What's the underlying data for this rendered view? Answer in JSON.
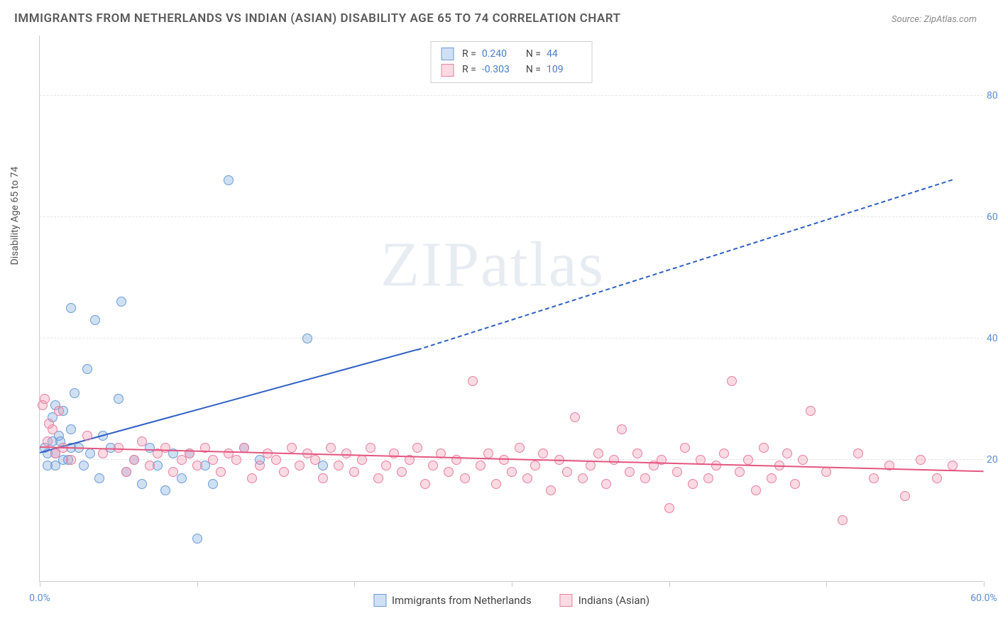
{
  "title": "IMMIGRANTS FROM NETHERLANDS VS INDIAN (ASIAN) DISABILITY AGE 65 TO 74 CORRELATION CHART",
  "source_label": "Source:",
  "source_value": "ZipAtlas.com",
  "y_axis_title": "Disability Age 65 to 74",
  "watermark": "ZIPatlas",
  "chart": {
    "type": "scatter",
    "xlim": [
      0,
      60
    ],
    "ylim": [
      0,
      90
    ],
    "y_ticks": [
      20,
      40,
      60,
      80
    ],
    "y_tick_labels": [
      "20.0%",
      "40.0%",
      "60.0%",
      "80.0%"
    ],
    "x_ticks": [
      0,
      10,
      20,
      30,
      40,
      50,
      60
    ],
    "x_tick_labels_shown": {
      "0": "0.0%",
      "60": "60.0%"
    },
    "grid_color": "#e4e4e4",
    "background": "#ffffff",
    "series": [
      {
        "name": "Immigrants from Netherlands",
        "marker_fill": "rgba(120,165,220,0.35)",
        "marker_stroke": "#6a9bd8",
        "marker_size": 14,
        "trend_color": "#2f5fc2",
        "trend_solid": {
          "x1": 0,
          "y1": 21,
          "x2": 24,
          "y2": 38
        },
        "trend_dashed": {
          "x1": 24,
          "y1": 38,
          "x2": 58,
          "y2": 66
        },
        "R": "0.240",
        "N": "44",
        "points": [
          [
            0.3,
            22
          ],
          [
            0.5,
            21
          ],
          [
            0.8,
            27
          ],
          [
            1,
            29
          ],
          [
            1.2,
            24
          ],
          [
            1,
            19
          ],
          [
            1.3,
            23
          ],
          [
            1.5,
            28
          ],
          [
            1.8,
            20
          ],
          [
            2,
            25
          ],
          [
            2.2,
            31
          ],
          [
            2.5,
            22
          ],
          [
            2,
            45
          ],
          [
            2.8,
            19
          ],
          [
            3,
            35
          ],
          [
            3.2,
            21
          ],
          [
            3.5,
            43
          ],
          [
            3.8,
            17
          ],
          [
            4,
            24
          ],
          [
            4.5,
            22
          ],
          [
            5,
            30
          ],
          [
            5.2,
            46
          ],
          [
            5.5,
            18
          ],
          [
            6,
            20
          ],
          [
            6.5,
            16
          ],
          [
            7,
            22
          ],
          [
            7.5,
            19
          ],
          [
            8,
            15
          ],
          [
            8.5,
            21
          ],
          [
            9,
            17
          ],
          [
            9.5,
            21
          ],
          [
            10,
            7
          ],
          [
            10.5,
            19
          ],
          [
            11,
            16
          ],
          [
            12,
            66
          ],
          [
            13,
            22
          ],
          [
            14,
            20
          ],
          [
            17,
            40
          ],
          [
            18,
            19
          ],
          [
            1,
            21
          ],
          [
            1.5,
            20
          ],
          [
            2,
            22
          ],
          [
            0.8,
            23
          ],
          [
            0.5,
            19
          ]
        ]
      },
      {
        "name": "Indians (Asian)",
        "marker_fill": "rgba(240,150,175,0.35)",
        "marker_stroke": "#e87fa0",
        "marker_size": 14,
        "trend_color": "#e4557f",
        "trend_solid": {
          "x1": 0,
          "y1": 22,
          "x2": 60,
          "y2": 18
        },
        "R": "-0.303",
        "N": "109",
        "points": [
          [
            0.2,
            29
          ],
          [
            0.5,
            23
          ],
          [
            0.8,
            25
          ],
          [
            1,
            21
          ],
          [
            1.2,
            28
          ],
          [
            1.5,
            22
          ],
          [
            2,
            20
          ],
          [
            3,
            24
          ],
          [
            4,
            21
          ],
          [
            5,
            22
          ],
          [
            5.5,
            18
          ],
          [
            6,
            20
          ],
          [
            6.5,
            23
          ],
          [
            7,
            19
          ],
          [
            7.5,
            21
          ],
          [
            8,
            22
          ],
          [
            8.5,
            18
          ],
          [
            9,
            20
          ],
          [
            9.5,
            21
          ],
          [
            10,
            19
          ],
          [
            10.5,
            22
          ],
          [
            11,
            20
          ],
          [
            11.5,
            18
          ],
          [
            12,
            21
          ],
          [
            12.5,
            20
          ],
          [
            13,
            22
          ],
          [
            13.5,
            17
          ],
          [
            14,
            19
          ],
          [
            14.5,
            21
          ],
          [
            15,
            20
          ],
          [
            15.5,
            18
          ],
          [
            16,
            22
          ],
          [
            16.5,
            19
          ],
          [
            17,
            21
          ],
          [
            17.5,
            20
          ],
          [
            18,
            17
          ],
          [
            18.5,
            22
          ],
          [
            19,
            19
          ],
          [
            19.5,
            21
          ],
          [
            20,
            18
          ],
          [
            20.5,
            20
          ],
          [
            21,
            22
          ],
          [
            21.5,
            17
          ],
          [
            22,
            19
          ],
          [
            22.5,
            21
          ],
          [
            23,
            18
          ],
          [
            23.5,
            20
          ],
          [
            24,
            22
          ],
          [
            24.5,
            16
          ],
          [
            25,
            19
          ],
          [
            25.5,
            21
          ],
          [
            26,
            18
          ],
          [
            26.5,
            20
          ],
          [
            27,
            17
          ],
          [
            27.5,
            33
          ],
          [
            28,
            19
          ],
          [
            28.5,
            21
          ],
          [
            29,
            16
          ],
          [
            29.5,
            20
          ],
          [
            30,
            18
          ],
          [
            30.5,
            22
          ],
          [
            31,
            17
          ],
          [
            31.5,
            19
          ],
          [
            32,
            21
          ],
          [
            32.5,
            15
          ],
          [
            33,
            20
          ],
          [
            33.5,
            18
          ],
          [
            34,
            27
          ],
          [
            34.5,
            17
          ],
          [
            35,
            19
          ],
          [
            35.5,
            21
          ],
          [
            36,
            16
          ],
          [
            36.5,
            20
          ],
          [
            37,
            25
          ],
          [
            37.5,
            18
          ],
          [
            38,
            21
          ],
          [
            38.5,
            17
          ],
          [
            39,
            19
          ],
          [
            39.5,
            20
          ],
          [
            40,
            12
          ],
          [
            40.5,
            18
          ],
          [
            41,
            22
          ],
          [
            41.5,
            16
          ],
          [
            42,
            20
          ],
          [
            42.5,
            17
          ],
          [
            43,
            19
          ],
          [
            43.5,
            21
          ],
          [
            44,
            33
          ],
          [
            44.5,
            18
          ],
          [
            45,
            20
          ],
          [
            45.5,
            15
          ],
          [
            46,
            22
          ],
          [
            46.5,
            17
          ],
          [
            47,
            19
          ],
          [
            47.5,
            21
          ],
          [
            48,
            16
          ],
          [
            48.5,
            20
          ],
          [
            49,
            28
          ],
          [
            50,
            18
          ],
          [
            51,
            10
          ],
          [
            52,
            21
          ],
          [
            53,
            17
          ],
          [
            54,
            19
          ],
          [
            55,
            14
          ],
          [
            56,
            20
          ],
          [
            57,
            17
          ],
          [
            58,
            19
          ],
          [
            0.3,
            30
          ],
          [
            0.6,
            26
          ]
        ]
      }
    ]
  },
  "legend_top": {
    "rows": [
      {
        "swatch_fill": "rgba(120,165,220,0.35)",
        "swatch_stroke": "#6a9bd8",
        "R_label": "R =",
        "R": "0.240",
        "N_label": "N =",
        "N": "44"
      },
      {
        "swatch_fill": "rgba(240,150,175,0.35)",
        "swatch_stroke": "#e87fa0",
        "R_label": "R =",
        "R": "-0.303",
        "N_label": "N =",
        "N": "109"
      }
    ]
  },
  "legend_bottom": [
    {
      "swatch_fill": "rgba(120,165,220,0.35)",
      "swatch_stroke": "#6a9bd8",
      "label": "Immigrants from Netherlands"
    },
    {
      "swatch_fill": "rgba(240,150,175,0.35)",
      "swatch_stroke": "#e87fa0",
      "label": "Indians (Asian)"
    }
  ]
}
